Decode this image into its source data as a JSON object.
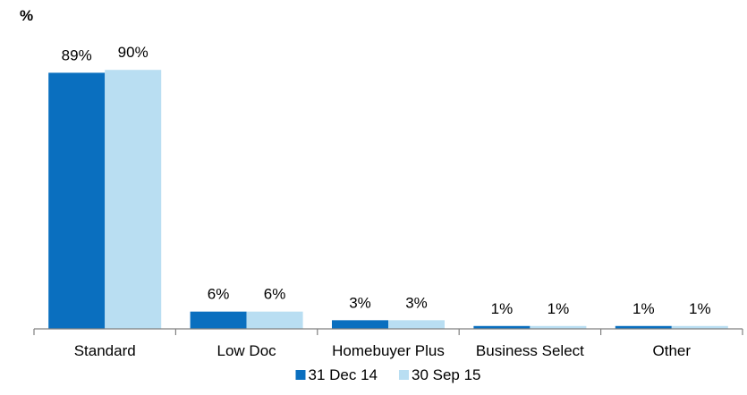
{
  "chart_data": {
    "type": "bar",
    "ylabel": "%",
    "categories": [
      "Standard",
      "Low Doc",
      "Homebuyer Plus",
      "Business Select",
      "Other"
    ],
    "series": [
      {
        "name": "31 Dec 14",
        "color": "#0a6fbf",
        "values": [
          89,
          6,
          3,
          1,
          1
        ],
        "labels": [
          "89%",
          "6%",
          "3%",
          "1%",
          "1%"
        ]
      },
      {
        "name": "30 Sep 15",
        "color": "#b9def2",
        "values": [
          90,
          6,
          3,
          1,
          1
        ],
        "labels": [
          "90%",
          "6%",
          "3%",
          "1%",
          "1%"
        ]
      }
    ],
    "ylim": [
      0,
      100
    ],
    "grid": false,
    "legend_position": "bottom"
  }
}
